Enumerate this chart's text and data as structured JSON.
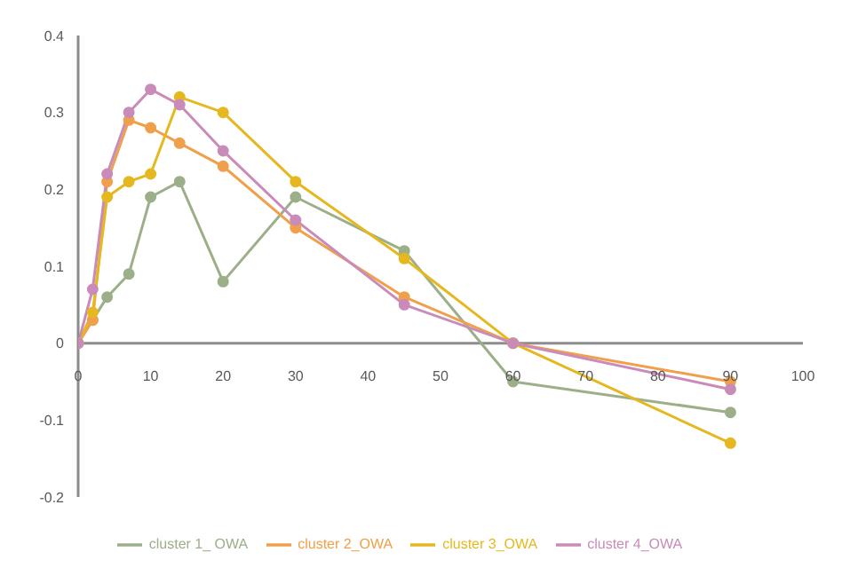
{
  "chart_data": {
    "type": "line",
    "x": [
      0,
      2,
      4,
      7,
      10,
      14,
      20,
      30,
      45,
      60,
      90
    ],
    "series": [
      {
        "name": "cluster 1_ OWA",
        "color": "#9caf88",
        "values": [
          0,
          0.03,
          0.06,
          0.09,
          0.19,
          0.21,
          0.08,
          0.19,
          0.12,
          -0.05,
          -0.09
        ]
      },
      {
        "name": "cluster 2_OWA",
        "color": "#f0a04b",
        "values": [
          0,
          0.03,
          0.21,
          0.29,
          0.28,
          0.26,
          0.23,
          0.15,
          0.06,
          0,
          -0.05
        ]
      },
      {
        "name": "cluster 3_OWA",
        "color": "#e6b820",
        "values": [
          0,
          0.04,
          0.19,
          0.21,
          0.22,
          0.32,
          0.3,
          0.21,
          0.11,
          0,
          -0.13
        ]
      },
      {
        "name": "cluster 4_OWA",
        "color": "#c98bb9",
        "values": [
          0,
          0.07,
          0.22,
          0.3,
          0.33,
          0.31,
          0.25,
          0.16,
          0.05,
          0,
          -0.06
        ]
      }
    ],
    "xlim": [
      0,
      100
    ],
    "xticks": [
      0,
      10,
      20,
      30,
      40,
      50,
      60,
      70,
      80,
      90,
      100
    ],
    "ylim": [
      -0.2,
      0.4
    ],
    "yticks": [
      -0.2,
      -0.1,
      0,
      0.1,
      0.2,
      0.3,
      0.4
    ],
    "grid": false,
    "legend": "bottom",
    "marker": "circle",
    "line_style": "solid"
  }
}
